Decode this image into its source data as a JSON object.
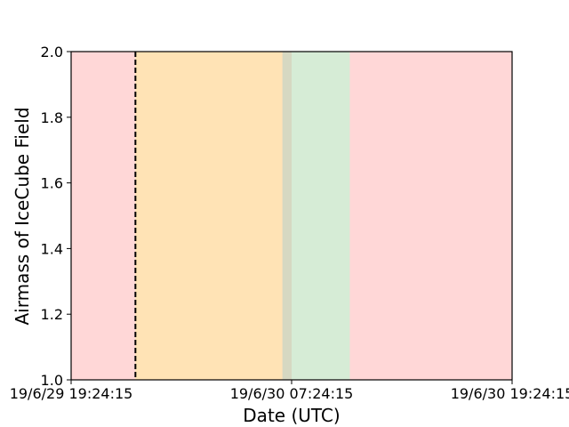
{
  "chart_data": {
    "type": "area",
    "title": "",
    "xlabel": "Date (UTC)",
    "ylabel": "Airmass of IceCube Field",
    "x_is_datetime": true,
    "xlim": [
      "2019-06-29T19:24:15",
      "2019-06-30T19:24:15"
    ],
    "ylim": [
      1.0,
      2.0
    ],
    "grid": false,
    "legend": "none",
    "x_ticks": [
      {
        "value": "2019-06-29T19:24:15",
        "label": "19/6/29 19:24:15"
      },
      {
        "value": "2019-06-30T07:24:15",
        "label": "19/6/30 07:24:15"
      },
      {
        "value": "2019-06-30T19:24:15",
        "label": "19/6/30 19:24:15"
      }
    ],
    "y_ticks": [
      {
        "value": 1.0,
        "label": "1.0"
      },
      {
        "value": 1.2,
        "label": "1.2"
      },
      {
        "value": 1.4,
        "label": "1.4"
      },
      {
        "value": 1.6,
        "label": "1.6"
      },
      {
        "value": 1.8,
        "label": "1.8"
      },
      {
        "value": 2.0,
        "label": "2.0"
      }
    ],
    "bands": [
      {
        "start": "2019-06-29T19:24:15",
        "end": "2019-06-30T07:24:15",
        "color": "#ff6666",
        "opacity": 0.26
      },
      {
        "start": "2019-06-29T22:54:15",
        "end": "2019-06-30T06:54:15",
        "color": "#ffff66",
        "opacity": 0.3
      },
      {
        "start": "2019-06-30T06:54:15",
        "end": "2019-06-30T10:34:15",
        "color": "#aedaae",
        "opacity": 0.5
      },
      {
        "start": "2019-06-30T10:34:15",
        "end": "2019-06-30T19:24:15",
        "color": "#ff6666",
        "opacity": 0.26
      }
    ],
    "vlines": [
      {
        "x": "2019-06-29T22:54:15",
        "color": "#000000",
        "style": "dashed"
      }
    ],
    "series": []
  }
}
